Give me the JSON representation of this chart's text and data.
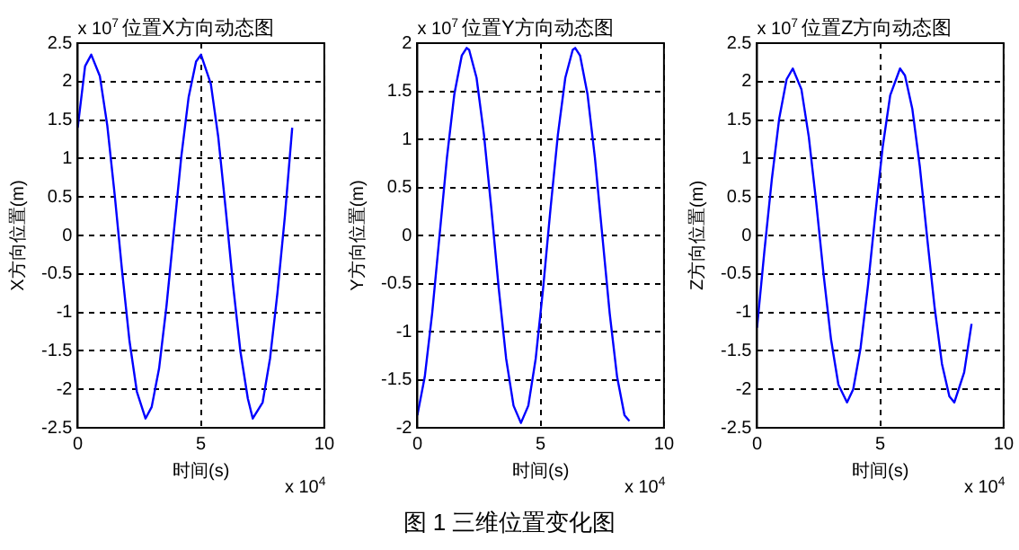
{
  "chart_data": [
    {
      "type": "line",
      "title": "位置X方向动态图",
      "xlabel": "时间(s)",
      "ylabel": "X方向位置(m)",
      "annotations": [
        "x 10$^{7}$",
        "x 10$^{4}$"
      ],
      "x": [
        0,
        0.3,
        0.55,
        0.9,
        1.2,
        1.5,
        1.8,
        2.1,
        2.4,
        2.75,
        3.0,
        3.3,
        3.6,
        3.9,
        4.2,
        4.5,
        4.8,
        5.0,
        5.4,
        5.7,
        6.0,
        6.3,
        6.6,
        6.9,
        7.1,
        7.5,
        7.8,
        8.1,
        8.4,
        8.7
      ],
      "series": [
        {
          "color": "#0000ff",
          "values": [
            1.4,
            2.2,
            2.35,
            2.07,
            1.43,
            0.53,
            -0.46,
            -1.37,
            -2.03,
            -2.38,
            -2.23,
            -1.73,
            -0.92,
            0.05,
            1.02,
            1.8,
            2.26,
            2.35,
            1.97,
            1.28,
            0.35,
            -0.64,
            -1.51,
            -2.12,
            -2.38,
            -2.17,
            -1.6,
            -0.75,
            0.24,
            1.4
          ]
        }
      ],
      "xlim": [
        0,
        10
      ],
      "xticks": [
        0,
        5,
        10
      ],
      "ylim": [
        -2.5,
        2.5
      ],
      "yticks": [
        -2.5,
        -2,
        -1.5,
        -1,
        -0.5,
        0,
        0.5,
        1,
        1.5,
        2,
        2.5
      ],
      "grid": true
    },
    {
      "type": "line",
      "title": "位置Y方向动态图",
      "xlabel": "时间(s)",
      "ylabel": "Y方向位置(m)",
      "annotations": [
        "x 10$^{7}$",
        "x 10$^{4}$",
        "图 1 三维位置变化图"
      ],
      "x": [
        0,
        0.3,
        0.6,
        0.9,
        1.2,
        1.5,
        1.8,
        2.0,
        2.1,
        2.4,
        2.7,
        3.0,
        3.3,
        3.6,
        3.9,
        4.2,
        4.5,
        4.8,
        5.1,
        5.4,
        5.7,
        6.0,
        6.3,
        6.4,
        6.6,
        6.9,
        7.2,
        7.5,
        7.8,
        8.1,
        8.4,
        8.6
      ],
      "series": [
        {
          "color": "#0000ff",
          "values": [
            -1.87,
            -1.47,
            -0.81,
            0,
            0.81,
            1.47,
            1.87,
            1.95,
            1.93,
            1.64,
            1.05,
            0.28,
            -0.55,
            -1.28,
            -1.77,
            -1.95,
            -1.77,
            -1.28,
            -0.55,
            0.28,
            1.05,
            1.64,
            1.93,
            1.95,
            1.87,
            1.47,
            0.81,
            0,
            -0.81,
            -1.47,
            -1.87,
            -1.93
          ]
        }
      ],
      "xlim": [
        0,
        10
      ],
      "xticks": [
        0,
        5,
        10
      ],
      "ylim": [
        -2,
        2
      ],
      "yticks": [
        -2,
        -1.5,
        -1,
        -0.5,
        0,
        0.5,
        1,
        1.5,
        2
      ],
      "grid": true
    },
    {
      "type": "line",
      "title": "位置Z方向动态图",
      "xlabel": "时间(s)",
      "ylabel": "Z方向位置(m)",
      "annotations": [
        "x 10$^{7}$",
        "x 10$^{4}$"
      ],
      "x": [
        0,
        0.3,
        0.6,
        0.9,
        1.2,
        1.45,
        1.8,
        2.1,
        2.4,
        2.7,
        3.0,
        3.3,
        3.65,
        3.9,
        4.2,
        4.5,
        4.8,
        5.1,
        5.4,
        5.8,
        6.0,
        6.3,
        6.6,
        6.9,
        7.2,
        7.5,
        7.8,
        8.0,
        8.4,
        8.7
      ],
      "series": [
        {
          "color": "#0000ff",
          "values": [
            -1.2,
            -0.2,
            0.73,
            1.52,
            2.03,
            2.17,
            1.9,
            1.28,
            0.43,
            -0.51,
            -1.35,
            -1.94,
            -2.17,
            -2.0,
            -1.46,
            -0.65,
            0.28,
            1.16,
            1.82,
            2.17,
            2.08,
            1.64,
            0.9,
            -0.03,
            -0.93,
            -1.67,
            -2.09,
            -2.17,
            -1.78,
            -1.15
          ]
        }
      ],
      "xlim": [
        0,
        10
      ],
      "xticks": [
        0,
        5,
        10
      ],
      "ylim": [
        -2.5,
        2.5
      ],
      "yticks": [
        -2.5,
        -2,
        -1.5,
        -1,
        -0.5,
        0,
        0.5,
        1,
        1.5,
        2,
        2.5
      ],
      "grid": true
    }
  ]
}
